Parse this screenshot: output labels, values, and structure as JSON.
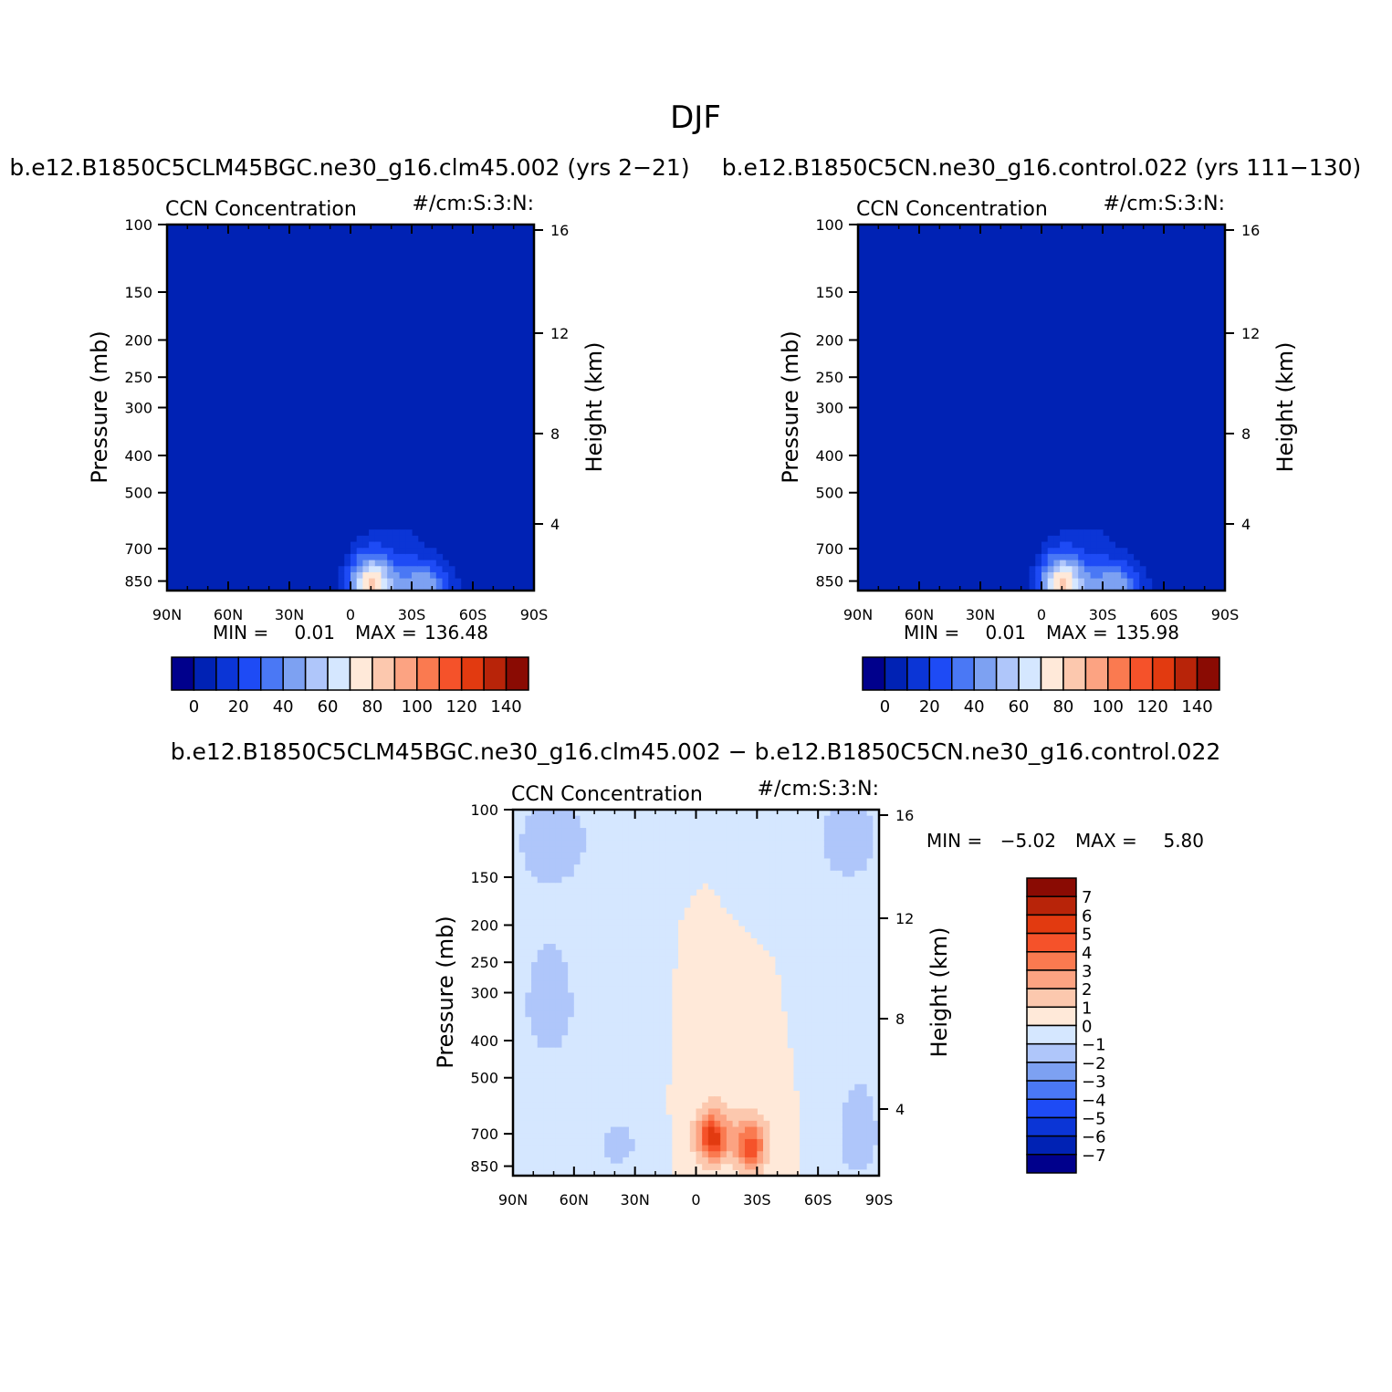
{
  "figure": {
    "title": "DJF"
  },
  "palettes": {
    "absolute": [
      "#00008C",
      "#0022B4",
      "#0B35D6",
      "#1E4BF5",
      "#4A78F5",
      "#7DA1F2",
      "#AFC6FA",
      "#D5E7FF",
      "#FFE9D9",
      "#FCC8AE",
      "#FCA382",
      "#FA7A50",
      "#F5522A",
      "#E23A10",
      "#B82409",
      "#8A0B03"
    ],
    "difference": [
      "#00008C",
      "#0022B4",
      "#0B35D6",
      "#1E4BF5",
      "#4A78F5",
      "#7DA1F2",
      "#AFC6FA",
      "#D5E7FF",
      "#FFE9D9",
      "#FCC8AE",
      "#FCA382",
      "#FA7A50",
      "#F5522A",
      "#E23A10",
      "#B82409",
      "#8A0B03"
    ]
  },
  "chart_data": [
    {
      "type": "heatmap",
      "panel": "top-left",
      "case_title": "b.e12.B1850C5CLM45BGC.ne30_g16.clm45.002 (yrs 2−21)",
      "left_string": "CCN Concentration",
      "right_string": "#/cm:S:3:N:",
      "ylabel": "Pressure (mb)",
      "ylabel_right": "Height (km)",
      "x_ticks": [
        "90N",
        "60N",
        "30N",
        "0",
        "30S",
        "60S",
        "90S"
      ],
      "x_tick_values": [
        90,
        60,
        30,
        0,
        -30,
        -60,
        -90
      ],
      "y_ticks": [
        100,
        150,
        200,
        250,
        300,
        400,
        500,
        700,
        850
      ],
      "y_right_ticks": [
        16,
        12,
        8,
        4
      ],
      "ylim": [
        850,
        100
      ],
      "stats": {
        "min_label": "MIN =",
        "min_value": "0.01",
        "max_label": "MAX =",
        "max_value": "136.48"
      },
      "colorbar": {
        "orientation": "horizontal",
        "tick_labels": [
          "0",
          "20",
          "40",
          "60",
          "80",
          "100",
          "120",
          "140"
        ]
      },
      "field": {
        "background_level": 1,
        "blobs": [
          {
            "lat": -35,
            "p": 870,
            "sigma_lat": 10,
            "sigma_p": 95,
            "value": 48
          },
          {
            "lat": -10,
            "p": 870,
            "sigma_lat": 8,
            "sigma_p": 110,
            "value": 80
          },
          {
            "lat": -25,
            "p": 650,
            "sigma_lat": 8,
            "sigma_p": 60,
            "value": 10
          }
        ]
      }
    },
    {
      "type": "heatmap",
      "panel": "top-right",
      "case_title": "b.e12.B1850C5CN.ne30_g16.control.022 (yrs 111−130)",
      "left_string": "CCN Concentration",
      "right_string": "#/cm:S:3:N:",
      "ylabel": "Pressure (mb)",
      "ylabel_right": "Height (km)",
      "x_ticks": [
        "90N",
        "60N",
        "30N",
        "0",
        "30S",
        "60S",
        "90S"
      ],
      "x_tick_values": [
        90,
        60,
        30,
        0,
        -30,
        -60,
        -90
      ],
      "y_ticks": [
        100,
        150,
        200,
        250,
        300,
        400,
        500,
        700,
        850
      ],
      "y_right_ticks": [
        16,
        12,
        8,
        4
      ],
      "ylim": [
        850,
        100
      ],
      "stats": {
        "min_label": "MIN =",
        "min_value": "0.01",
        "max_label": "MAX =",
        "max_value": "135.98"
      },
      "colorbar": {
        "orientation": "horizontal",
        "tick_labels": [
          "0",
          "20",
          "40",
          "60",
          "80",
          "100",
          "120",
          "140"
        ]
      },
      "field": {
        "background_level": 1,
        "blobs": [
          {
            "lat": -35,
            "p": 870,
            "sigma_lat": 10,
            "sigma_p": 95,
            "value": 48
          },
          {
            "lat": -10,
            "p": 870,
            "sigma_lat": 8,
            "sigma_p": 110,
            "value": 80
          },
          {
            "lat": -25,
            "p": 650,
            "sigma_lat": 8,
            "sigma_p": 60,
            "value": 10
          }
        ]
      }
    },
    {
      "type": "heatmap",
      "panel": "bottom",
      "case_title": "b.e12.B1850C5CLM45BGC.ne30_g16.clm45.002 − b.e12.B1850C5CN.ne30_g16.control.022",
      "left_string": "CCN Concentration",
      "right_string": "#/cm:S:3:N:",
      "ylabel": "Pressure (mb)",
      "ylabel_right": "Height (km)",
      "x_ticks": [
        "90N",
        "60N",
        "30N",
        "0",
        "30S",
        "60S",
        "90S"
      ],
      "x_tick_values": [
        90,
        60,
        30,
        0,
        -30,
        -60,
        -90
      ],
      "y_ticks": [
        100,
        150,
        200,
        250,
        300,
        400,
        500,
        700,
        850
      ],
      "y_right_ticks": [
        16,
        12,
        8,
        4
      ],
      "ylim": [
        850,
        100
      ],
      "stats": {
        "min_label": "MIN =",
        "min_value": "−5.02",
        "max_label": "MAX =",
        "max_value": "5.80"
      },
      "colorbar": {
        "orientation": "vertical",
        "tick_labels": [
          "7",
          "6",
          "5",
          "4",
          "3",
          "2",
          "1",
          "0",
          "−1",
          "−2",
          "−3",
          "−4",
          "−5",
          "−6",
          "−7"
        ]
      },
      "field": {
        "background_level": 8,
        "blobs": [
          {
            "lat": -8,
            "p": 720,
            "sigma_lat": 5,
            "sigma_p": 70,
            "value": 4.4
          },
          {
            "lat": -27,
            "p": 760,
            "sigma_lat": 5,
            "sigma_p": 80,
            "value": 3.6
          },
          {
            "lat": -8,
            "p": 700,
            "sigma_lat": 10,
            "sigma_p": 110,
            "value": 1.2
          },
          {
            "lat": -27,
            "p": 720,
            "sigma_lat": 9,
            "sigma_p": 110,
            "value": 0.9
          }
        ],
        "negative_regions": [
          {
            "lat": 70,
            "p": 120,
            "sigma_lat": 15,
            "sigma_p": 25,
            "value": -1.5
          },
          {
            "lat": -75,
            "p": 120,
            "sigma_lat": 14,
            "sigma_p": 30,
            "value": -1.5
          },
          {
            "lat": 72,
            "p": 320,
            "sigma_lat": 12,
            "sigma_p": 110,
            "value": -1.5
          },
          {
            "lat": -80,
            "p": 700,
            "sigma_lat": 10,
            "sigma_p": 200,
            "value": -1.5
          },
          {
            "lat": 38,
            "p": 750,
            "sigma_lat": 12,
            "sigma_p": 130,
            "value": -1.2
          }
        ]
      }
    }
  ]
}
